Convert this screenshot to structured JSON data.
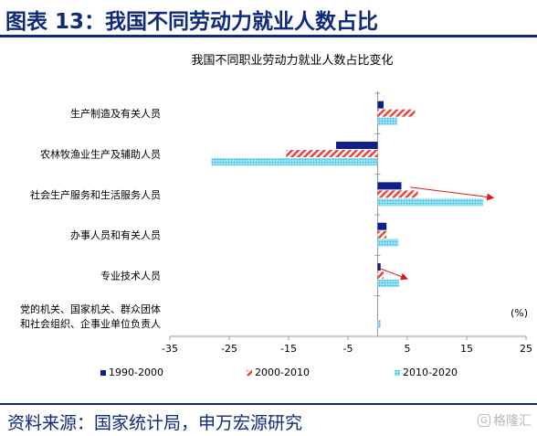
{
  "header": {
    "title": "图表 13：我国不同劳动力就业人数占比"
  },
  "footer": {
    "source": "资料来源：国家统计局，申万宏源研究",
    "watermark_logo": "G",
    "watermark": "格隆汇"
  },
  "chart_data": {
    "type": "bar",
    "orientation": "horizontal",
    "title": "我国不同职业劳动力就业人数占比变化",
    "unit_label": "(%)",
    "categories": [
      "生产制造及有关人员",
      "农林牧渔业生产及辅助人员",
      "社会生产服务和生活服务人员",
      "办事人员和有关人员",
      "专业技术人员",
      "党的机关、国家机关、群众团体和社会组织、企事业单位负责人"
    ],
    "category_lines": [
      [
        "生产制造及有关人员"
      ],
      [
        "农林牧渔业生产及辅助人员"
      ],
      [
        "社会生产服务和生活服务人员"
      ],
      [
        "办事人员和有关人员"
      ],
      [
        "专业技术人员"
      ],
      [
        "党的机关、国家机关、群众团体",
        "和社会组织、企事业单位负责人"
      ]
    ],
    "series": [
      {
        "name": "1990-2000",
        "values": [
          1.0,
          -7.0,
          4.0,
          1.5,
          0.5,
          0.0
        ],
        "color": "#0d1f8c",
        "pattern": "solid"
      },
      {
        "name": "2000-2010",
        "values": [
          6.3,
          -15.4,
          6.8,
          1.5,
          1.0,
          0.0
        ],
        "color": "#e8463c",
        "pattern": "diagonal"
      },
      {
        "name": "2010-2020",
        "values": [
          3.3,
          -28.0,
          17.8,
          3.5,
          3.6,
          0.5
        ],
        "color": "#33c7e8",
        "pattern": "dotted"
      }
    ],
    "xlim": [
      -35,
      25
    ],
    "xticks": [
      "-35",
      "-25",
      "-15",
      "-5",
      "5",
      "15",
      "25"
    ],
    "legend_position": "bottom",
    "annotations": [
      {
        "type": "arrow",
        "color": "#e01818",
        "from": {
          "category": "社会生产服务和生活服务人员",
          "x": 5.5
        },
        "to": {
          "category": "社会生产服务和生活服务人员",
          "x": 19.5
        }
      },
      {
        "type": "arrow",
        "color": "#e01818",
        "from": {
          "category": "专业技术人员",
          "x": 0.3
        },
        "to": {
          "category": "专业技术人员",
          "x": 5.0
        }
      }
    ]
  }
}
